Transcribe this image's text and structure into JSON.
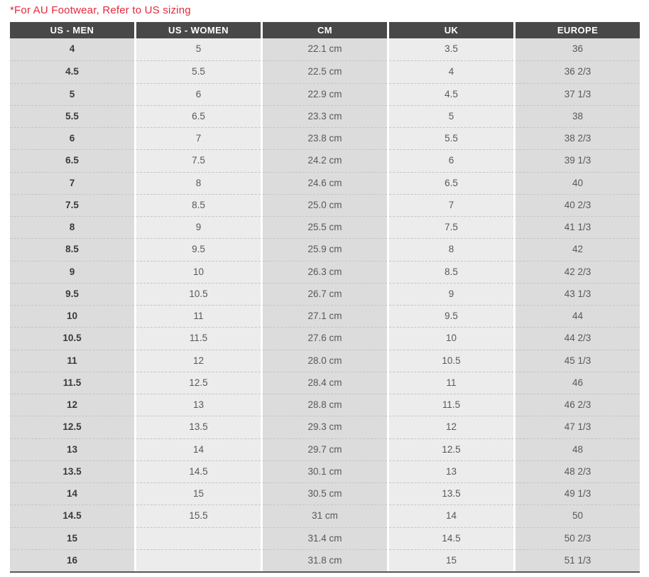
{
  "note": {
    "text": "*For AU Footwear, Refer to US sizing"
  },
  "table": {
    "headers": [
      "US - MEN",
      "US - WOMEN",
      "CM",
      "UK",
      "EUROPE"
    ],
    "rows": [
      [
        "4",
        "5",
        "22.1 cm",
        "3.5",
        "36"
      ],
      [
        "4.5",
        "5.5",
        "22.5 cm",
        "4",
        "36 2/3"
      ],
      [
        "5",
        "6",
        "22.9 cm",
        "4.5",
        "37 1/3"
      ],
      [
        "5.5",
        "6.5",
        "23.3 cm",
        "5",
        "38"
      ],
      [
        "6",
        "7",
        "23.8 cm",
        "5.5",
        "38 2/3"
      ],
      [
        "6.5",
        "7.5",
        "24.2 cm",
        "6",
        "39 1/3"
      ],
      [
        "7",
        "8",
        "24.6 cm",
        "6.5",
        "40"
      ],
      [
        "7.5",
        "8.5",
        "25.0 cm",
        "7",
        "40 2/3"
      ],
      [
        "8",
        "9",
        "25.5 cm",
        "7.5",
        "41 1/3"
      ],
      [
        "8.5",
        "9.5",
        "25.9 cm",
        "8",
        "42"
      ],
      [
        "9",
        "10",
        "26.3 cm",
        "8.5",
        "42 2/3"
      ],
      [
        "9.5",
        "10.5",
        "26.7 cm",
        "9",
        "43 1/3"
      ],
      [
        "10",
        "11",
        "27.1 cm",
        "9.5",
        "44"
      ],
      [
        "10.5",
        "11.5",
        "27.6 cm",
        "10",
        "44 2/3"
      ],
      [
        "11",
        "12",
        "28.0 cm",
        "10.5",
        "45 1/3"
      ],
      [
        "11.5",
        "12.5",
        "28.4 cm",
        "11",
        "46"
      ],
      [
        "12",
        "13",
        "28.8 cm",
        "11.5",
        "46 2/3"
      ],
      [
        "12.5",
        "13.5",
        "29.3 cm",
        "12",
        "47 1/3"
      ],
      [
        "13",
        "14",
        "29.7 cm",
        "12.5",
        "48"
      ],
      [
        "13.5",
        "14.5",
        "30.1 cm",
        "13",
        "48 2/3"
      ],
      [
        "14",
        "15",
        "30.5 cm",
        "13.5",
        "49 1/3"
      ],
      [
        "14.5",
        "15.5",
        "31 cm",
        "14",
        "50"
      ],
      [
        "15",
        "",
        "31.4 cm",
        "14.5",
        "50 2/3"
      ],
      [
        "16",
        "",
        "31.8 cm",
        "15",
        "51 1/3"
      ]
    ]
  },
  "colors": {
    "note_red": "#e1293b",
    "header_bg": "#484848",
    "header_text": "#ffffff",
    "column_dark": "#dcdcdc",
    "column_light": "#ececec",
    "cell_text": "#56585c",
    "first_col_text": "#38393c",
    "bottom_border": "#54565a"
  },
  "chart_data": {
    "type": "table",
    "title": "Footwear size conversion chart",
    "columns": [
      "US - MEN",
      "US - WOMEN",
      "CM",
      "UK",
      "EUROPE"
    ],
    "rows": [
      [
        "4",
        "5",
        "22.1 cm",
        "3.5",
        "36"
      ],
      [
        "4.5",
        "5.5",
        "22.5 cm",
        "4",
        "36 2/3"
      ],
      [
        "5",
        "6",
        "22.9 cm",
        "4.5",
        "37 1/3"
      ],
      [
        "5.5",
        "6.5",
        "23.3 cm",
        "5",
        "38"
      ],
      [
        "6",
        "7",
        "23.8 cm",
        "5.5",
        "38 2/3"
      ],
      [
        "6.5",
        "7.5",
        "24.2 cm",
        "6",
        "39 1/3"
      ],
      [
        "7",
        "8",
        "24.6 cm",
        "6.5",
        "40"
      ],
      [
        "7.5",
        "8.5",
        "25.0 cm",
        "7",
        "40 2/3"
      ],
      [
        "8",
        "9",
        "25.5 cm",
        "7.5",
        "41 1/3"
      ],
      [
        "8.5",
        "9.5",
        "25.9 cm",
        "8",
        "42"
      ],
      [
        "9",
        "10",
        "26.3 cm",
        "8.5",
        "42 2/3"
      ],
      [
        "9.5",
        "10.5",
        "26.7 cm",
        "9",
        "43 1/3"
      ],
      [
        "10",
        "11",
        "27.1 cm",
        "9.5",
        "44"
      ],
      [
        "10.5",
        "11.5",
        "27.6 cm",
        "10",
        "44 2/3"
      ],
      [
        "11",
        "12",
        "28.0 cm",
        "10.5",
        "45 1/3"
      ],
      [
        "11.5",
        "12.5",
        "28.4 cm",
        "11",
        "46"
      ],
      [
        "12",
        "13",
        "28.8 cm",
        "11.5",
        "46 2/3"
      ],
      [
        "12.5",
        "13.5",
        "29.3 cm",
        "12",
        "47 1/3"
      ],
      [
        "13",
        "14",
        "29.7 cm",
        "12.5",
        "48"
      ],
      [
        "13.5",
        "14.5",
        "30.1 cm",
        "13",
        "48 2/3"
      ],
      [
        "14",
        "15",
        "30.5 cm",
        "13.5",
        "49 1/3"
      ],
      [
        "14.5",
        "15.5",
        "31 cm",
        "14",
        "50"
      ],
      [
        "15",
        "",
        "31.4 cm",
        "14.5",
        "50 2/3"
      ],
      [
        "16",
        "",
        "31.8 cm",
        "15",
        "51 1/3"
      ]
    ]
  }
}
